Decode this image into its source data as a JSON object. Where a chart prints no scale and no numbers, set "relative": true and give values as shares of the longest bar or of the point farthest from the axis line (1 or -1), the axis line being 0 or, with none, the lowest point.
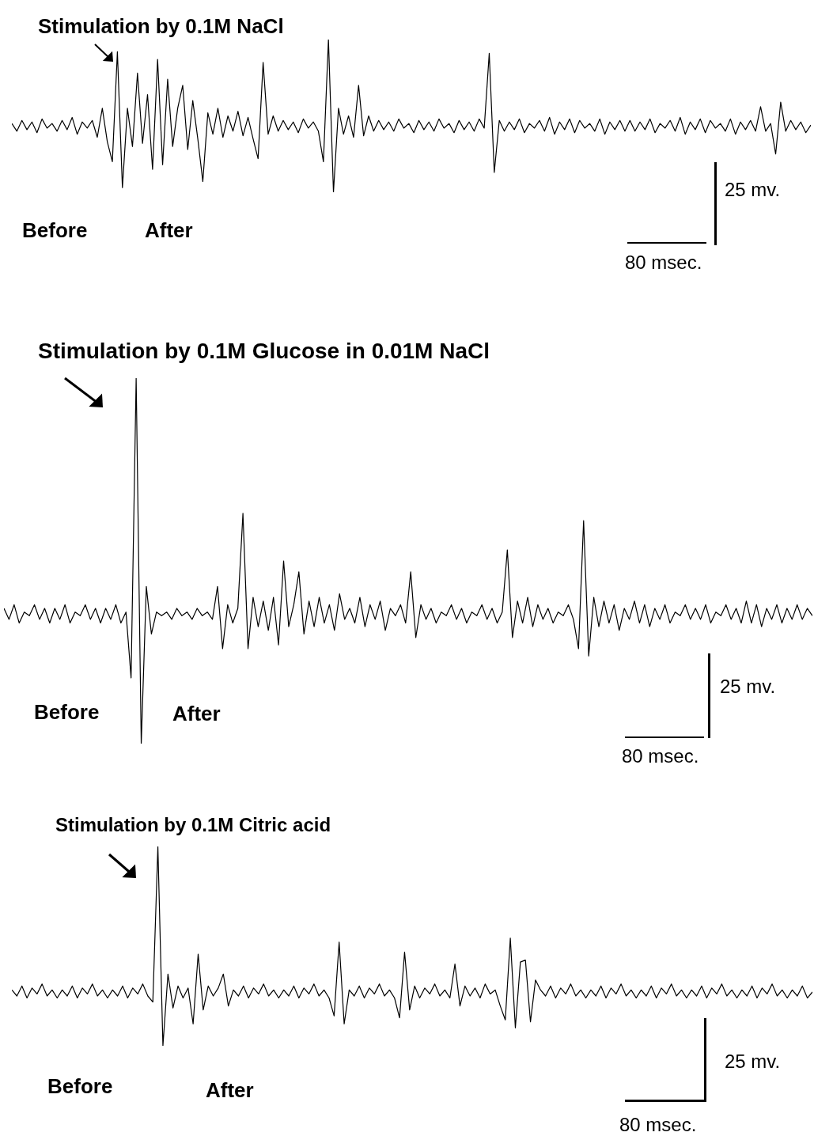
{
  "chart_data": [
    {
      "type": "line",
      "title": "Stimulation by 0.1M NaCl",
      "relative": true,
      "categories": [
        null,
        null,
        null,
        null,
        null,
        null,
        null,
        null,
        null,
        null,
        null,
        null,
        null,
        null,
        null,
        null,
        null,
        null,
        null,
        null,
        null,
        null,
        null,
        null,
        null,
        null,
        null,
        null,
        null,
        null,
        null,
        null,
        null,
        null,
        null,
        null,
        null,
        null,
        null,
        null,
        null,
        null,
        null,
        null,
        null,
        null,
        null,
        null,
        null,
        null,
        null,
        null,
        null,
        null,
        null,
        null,
        null,
        null,
        null,
        null,
        null,
        null,
        null,
        null,
        null,
        null,
        null,
        null,
        null,
        null,
        null,
        null,
        null,
        null,
        null,
        null,
        null,
        null,
        null,
        null,
        null,
        null,
        null,
        null,
        null,
        null,
        null,
        null,
        null,
        null,
        null,
        null,
        null,
        null,
        null,
        null,
        null,
        null,
        null,
        null,
        null,
        null,
        null,
        null,
        null,
        null,
        null,
        null,
        null,
        null,
        null,
        null,
        null,
        null,
        null,
        null,
        null,
        null,
        null,
        null,
        null,
        null,
        null,
        null,
        null,
        null,
        null,
        null,
        null,
        null,
        null,
        null,
        null,
        null,
        null,
        null,
        null,
        null,
        null,
        null,
        null,
        null,
        null,
        null,
        null,
        null,
        null,
        null,
        null,
        null,
        null,
        null,
        null,
        null,
        null,
        null,
        null,
        null,
        null,
        null
      ],
      "series": [
        {
          "color": "#000000",
          "values": [
            0.45,
            0.4,
            0.47,
            0.41,
            0.46,
            0.39,
            0.48,
            0.42,
            0.45,
            0.4,
            0.47,
            0.41,
            0.49,
            0.38,
            0.46,
            0.42,
            0.47,
            0.36,
            0.55,
            0.33,
            0.2,
            0.92,
            0.03,
            0.55,
            0.3,
            0.78,
            0.32,
            0.64,
            0.15,
            0.87,
            0.18,
            0.74,
            0.3,
            0.55,
            0.7,
            0.28,
            0.6,
            0.35,
            0.07,
            0.52,
            0.38,
            0.55,
            0.36,
            0.5,
            0.4,
            0.53,
            0.37,
            0.49,
            0.35,
            0.22,
            0.85,
            0.38,
            0.5,
            0.4,
            0.47,
            0.41,
            0.46,
            0.39,
            0.48,
            0.42,
            0.46,
            0.4,
            0.2,
            1,
            0,
            0.55,
            0.38,
            0.5,
            0.36,
            0.7,
            0.37,
            0.5,
            0.4,
            0.47,
            0.41,
            0.46,
            0.4,
            0.48,
            0.42,
            0.45,
            0.39,
            0.47,
            0.41,
            0.46,
            0.4,
            0.48,
            0.42,
            0.45,
            0.39,
            0.47,
            0.41,
            0.46,
            0.4,
            0.48,
            0.42,
            0.91,
            0.13,
            0.47,
            0.4,
            0.46,
            0.41,
            0.48,
            0.39,
            0.45,
            0.42,
            0.47,
            0.4,
            0.49,
            0.38,
            0.46,
            0.41,
            0.48,
            0.39,
            0.47,
            0.42,
            0.45,
            0.4,
            0.48,
            0.38,
            0.46,
            0.41,
            0.47,
            0.4,
            0.47,
            0.4,
            0.46,
            0.41,
            0.48,
            0.39,
            0.45,
            0.42,
            0.47,
            0.4,
            0.49,
            0.38,
            0.46,
            0.41,
            0.48,
            0.39,
            0.47,
            0.42,
            0.45,
            0.4,
            0.48,
            0.38,
            0.46,
            0.41,
            0.47,
            0.4,
            0.56,
            0.4,
            0.45,
            0.25,
            0.59,
            0.4,
            0.47,
            0.41,
            0.46,
            0.39,
            0.44
          ]
        }
      ],
      "annotations": [
        "Before",
        "After",
        "25 mv.",
        "80 msec."
      ]
    },
    {
      "type": "line",
      "title": "Stimulation by 0.1M Glucose in 0.01M NaCl",
      "relative": true,
      "categories": [
        null,
        null,
        null,
        null,
        null,
        null,
        null,
        null,
        null,
        null,
        null,
        null,
        null,
        null,
        null,
        null,
        null,
        null,
        null,
        null,
        null,
        null,
        null,
        null,
        null,
        null,
        null,
        null,
        null,
        null,
        null,
        null,
        null,
        null,
        null,
        null,
        null,
        null,
        null,
        null,
        null,
        null,
        null,
        null,
        null,
        null,
        null,
        null,
        null,
        null,
        null,
        null,
        null,
        null,
        null,
        null,
        null,
        null,
        null,
        null,
        null,
        null,
        null,
        null,
        null,
        null,
        null,
        null,
        null,
        null,
        null,
        null,
        null,
        null,
        null,
        null,
        null,
        null,
        null,
        null,
        null,
        null,
        null,
        null,
        null,
        null,
        null,
        null,
        null,
        null,
        null,
        null,
        null,
        null,
        null,
        null,
        null,
        null,
        null,
        null,
        null,
        null,
        null,
        null,
        null,
        null,
        null,
        null,
        null,
        null,
        null,
        null,
        null,
        null,
        null,
        null,
        null,
        null,
        null,
        null,
        null,
        null,
        null,
        null,
        null,
        null,
        null,
        null,
        null,
        null,
        null,
        null,
        null,
        null,
        null,
        null,
        null,
        null,
        null,
        null,
        null,
        null,
        null,
        null,
        null,
        null,
        null,
        null,
        null,
        null,
        null,
        null,
        null,
        null,
        null,
        null,
        null,
        null,
        null,
        null
      ],
      "series": [
        {
          "color": "#000000",
          "values": [
            0.37,
            0.34,
            0.38,
            0.33,
            0.36,
            0.35,
            0.38,
            0.34,
            0.37,
            0.33,
            0.37,
            0.34,
            0.38,
            0.33,
            0.36,
            0.35,
            0.38,
            0.34,
            0.37,
            0.33,
            0.37,
            0.34,
            0.38,
            0.33,
            0.36,
            0.18,
            1,
            0,
            0.43,
            0.3,
            0.36,
            0.35,
            0.36,
            0.34,
            0.37,
            0.35,
            0.36,
            0.34,
            0.37,
            0.35,
            0.36,
            0.34,
            0.43,
            0.26,
            0.38,
            0.33,
            0.37,
            0.63,
            0.26,
            0.4,
            0.32,
            0.39,
            0.31,
            0.4,
            0.27,
            0.5,
            0.32,
            0.38,
            0.47,
            0.3,
            0.39,
            0.32,
            0.4,
            0.33,
            0.38,
            0.31,
            0.41,
            0.34,
            0.37,
            0.33,
            0.4,
            0.32,
            0.38,
            0.34,
            0.39,
            0.31,
            0.37,
            0.35,
            0.38,
            0.33,
            0.47,
            0.29,
            0.38,
            0.34,
            0.37,
            0.33,
            0.36,
            0.35,
            0.38,
            0.34,
            0.37,
            0.33,
            0.36,
            0.35,
            0.38,
            0.34,
            0.37,
            0.33,
            0.36,
            0.53,
            0.29,
            0.39,
            0.33,
            0.4,
            0.32,
            0.38,
            0.34,
            0.37,
            0.33,
            0.36,
            0.35,
            0.38,
            0.34,
            0.26,
            0.61,
            0.24,
            0.4,
            0.32,
            0.39,
            0.33,
            0.38,
            0.31,
            0.37,
            0.34,
            0.39,
            0.33,
            0.38,
            0.32,
            0.37,
            0.34,
            0.38,
            0.33,
            0.36,
            0.35,
            0.38,
            0.34,
            0.37,
            0.34,
            0.38,
            0.33,
            0.36,
            0.35,
            0.38,
            0.34,
            0.37,
            0.33,
            0.39,
            0.33,
            0.38,
            0.32,
            0.37,
            0.34,
            0.38,
            0.33,
            0.37,
            0.34,
            0.38,
            0.34,
            0.37,
            0.35
          ]
        }
      ],
      "annotations": [
        "Before",
        "After",
        "25 mv.",
        "80 msec."
      ]
    },
    {
      "type": "line",
      "title": "Stimulation by 0.1M Citric acid",
      "relative": true,
      "categories": [
        null,
        null,
        null,
        null,
        null,
        null,
        null,
        null,
        null,
        null,
        null,
        null,
        null,
        null,
        null,
        null,
        null,
        null,
        null,
        null,
        null,
        null,
        null,
        null,
        null,
        null,
        null,
        null,
        null,
        null,
        null,
        null,
        null,
        null,
        null,
        null,
        null,
        null,
        null,
        null,
        null,
        null,
        null,
        null,
        null,
        null,
        null,
        null,
        null,
        null,
        null,
        null,
        null,
        null,
        null,
        null,
        null,
        null,
        null,
        null,
        null,
        null,
        null,
        null,
        null,
        null,
        null,
        null,
        null,
        null,
        null,
        null,
        null,
        null,
        null,
        null,
        null,
        null,
        null,
        null,
        null,
        null,
        null,
        null,
        null,
        null,
        null,
        null,
        null,
        null,
        null,
        null,
        null,
        null,
        null,
        null,
        null,
        null,
        null,
        null,
        null,
        null,
        null,
        null,
        null,
        null,
        null,
        null,
        null,
        null,
        null,
        null,
        null,
        null,
        null,
        null,
        null,
        null,
        null,
        null,
        null,
        null,
        null,
        null,
        null,
        null,
        null,
        null,
        null,
        null,
        null,
        null,
        null,
        null,
        null,
        null,
        null,
        null,
        null,
        null,
        null,
        null,
        null,
        null,
        null,
        null,
        null,
        null,
        null,
        null,
        null,
        null,
        null,
        null,
        null,
        null,
        null,
        null,
        null,
        null
      ],
      "series": [
        {
          "color": "#000000",
          "values": [
            0.28,
            0.25,
            0.3,
            0.24,
            0.29,
            0.26,
            0.31,
            0.25,
            0.28,
            0.24,
            0.28,
            0.25,
            0.3,
            0.24,
            0.29,
            0.26,
            0.31,
            0.25,
            0.28,
            0.24,
            0.28,
            0.25,
            0.3,
            0.24,
            0.29,
            0.26,
            0.31,
            0.25,
            0.22,
            1,
            0,
            0.36,
            0.19,
            0.3,
            0.24,
            0.29,
            0.11,
            0.46,
            0.18,
            0.3,
            0.25,
            0.29,
            0.36,
            0.2,
            0.28,
            0.25,
            0.3,
            0.24,
            0.29,
            0.26,
            0.31,
            0.25,
            0.28,
            0.24,
            0.28,
            0.25,
            0.3,
            0.24,
            0.29,
            0.26,
            0.31,
            0.25,
            0.28,
            0.24,
            0.15,
            0.52,
            0.11,
            0.28,
            0.25,
            0.3,
            0.24,
            0.29,
            0.26,
            0.31,
            0.25,
            0.28,
            0.24,
            0.14,
            0.47,
            0.18,
            0.3,
            0.24,
            0.29,
            0.26,
            0.31,
            0.25,
            0.28,
            0.24,
            0.41,
            0.2,
            0.3,
            0.25,
            0.29,
            0.24,
            0.31,
            0.26,
            0.28,
            0.2,
            0.13,
            0.54,
            0.09,
            0.42,
            0.43,
            0.12,
            0.33,
            0.28,
            0.25,
            0.3,
            0.24,
            0.29,
            0.26,
            0.31,
            0.25,
            0.28,
            0.24,
            0.28,
            0.25,
            0.3,
            0.24,
            0.29,
            0.26,
            0.31,
            0.25,
            0.28,
            0.24,
            0.28,
            0.25,
            0.3,
            0.24,
            0.29,
            0.26,
            0.31,
            0.25,
            0.28,
            0.24,
            0.28,
            0.25,
            0.3,
            0.24,
            0.29,
            0.26,
            0.31,
            0.25,
            0.28,
            0.24,
            0.28,
            0.25,
            0.3,
            0.24,
            0.29,
            0.26,
            0.31,
            0.25,
            0.28,
            0.24,
            0.28,
            0.25,
            0.3,
            0.24,
            0.27
          ]
        }
      ],
      "annotations": [
        "Before",
        "After",
        "25 mv.",
        "80 msec."
      ]
    }
  ]
}
